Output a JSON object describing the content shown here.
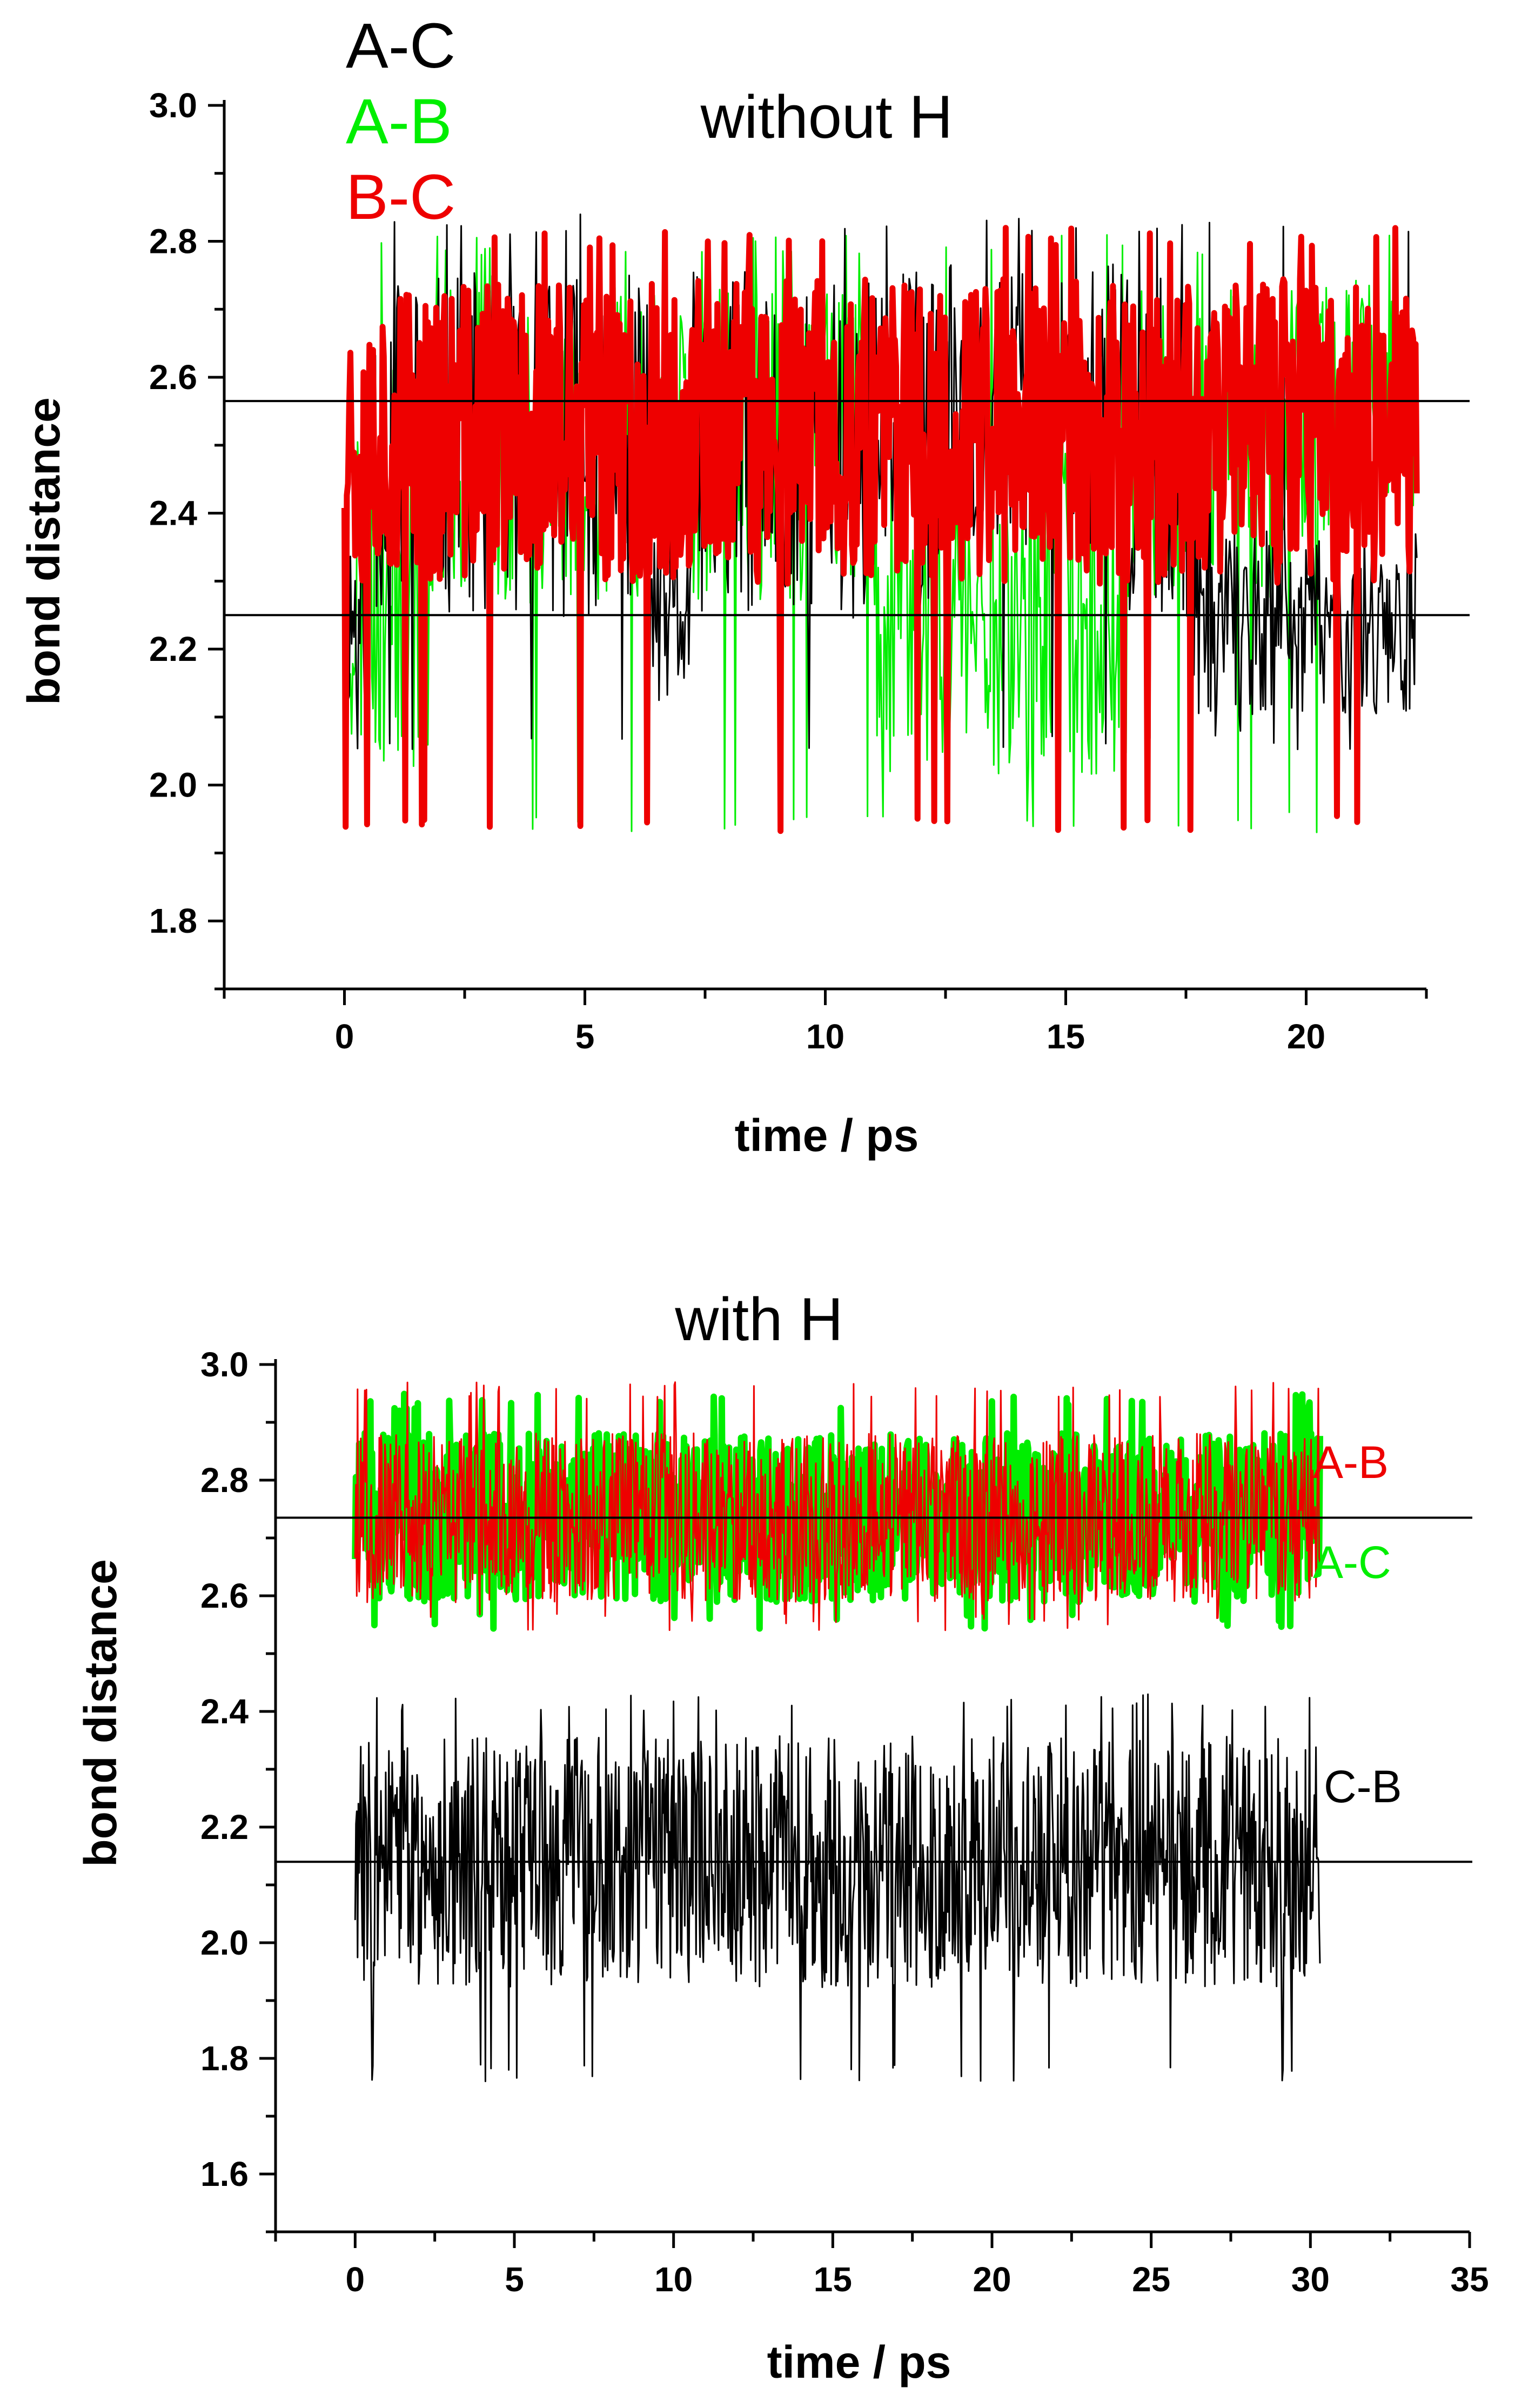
{
  "chart_data": [
    {
      "type": "line",
      "title": "without H",
      "xlabel": "time / ps",
      "ylabel": "bond distance",
      "xlim": [
        -2.5,
        22.5
      ],
      "ylim": [
        1.7,
        3.0
      ],
      "xticks": [
        0,
        5,
        10,
        15,
        20
      ],
      "yticks": [
        1.8,
        2.0,
        2.2,
        2.4,
        2.6,
        2.8,
        3.0
      ],
      "xtick_labels": [
        "0",
        "5",
        "10",
        "15",
        "20"
      ],
      "ytick_labels": [
        "1.8",
        "2.0",
        "2.2",
        "2.4",
        "2.6",
        "2.8",
        "3.0"
      ],
      "reference_lines": [
        2.565,
        2.25
      ],
      "legend": [
        "A-C",
        "A-B",
        "B-C"
      ],
      "series": [
        {
          "name": "A-C",
          "color": "#000000",
          "x_range": [
            0,
            22.3
          ],
          "mean": 2.5,
          "range": [
            2.05,
            2.84
          ],
          "seed": 11,
          "segments": [
            [
              0,
              0.5,
              2.25
            ],
            [
              6.3,
              7.2,
              2.25
            ],
            [
              12.5,
              16.3,
              2.56
            ],
            [
              17.5,
              22.3,
              2.24
            ]
          ]
        },
        {
          "name": "A-B",
          "color": "#00ee00",
          "x_range": [
            0,
            22.3
          ],
          "mean": 2.5,
          "range": [
            1.93,
            2.81
          ],
          "seed": 23,
          "segments": [
            [
              0,
              1.8,
              2.32
            ],
            [
              11.0,
              16.3,
              2.26
            ],
            [
              19.5,
              22.3,
              2.55
            ]
          ]
        },
        {
          "name": "B-C",
          "color": "#ee0000",
          "x_range": [
            0,
            22.3
          ],
          "mean": 2.52,
          "range": [
            1.93,
            2.82
          ],
          "seed": 37,
          "segments": [
            [
              0,
              22.3,
              2.52
            ]
          ]
        }
      ]
    },
    {
      "type": "line",
      "title": "with H",
      "xlabel": "time / ps",
      "ylabel": "bond distance",
      "xlim": [
        -2.5,
        35
      ],
      "ylim": [
        1.5,
        3.0
      ],
      "xticks": [
        0,
        5,
        10,
        15,
        20,
        25,
        30,
        35
      ],
      "yticks": [
        1.6,
        1.8,
        2.0,
        2.2,
        2.4,
        2.6,
        2.8,
        3.0
      ],
      "xtick_labels": [
        "0",
        "5",
        "10",
        "15",
        "20",
        "25",
        "30",
        "35"
      ],
      "ytick_labels": [
        "1.6",
        "1.8",
        "2.0",
        "2.2",
        "2.4",
        "2.6",
        "2.8",
        "3.0"
      ],
      "reference_lines": [
        2.735,
        2.14
      ],
      "series": [
        {
          "name": "A-C",
          "color": "#00ee00",
          "x_range": [
            0,
            30.3
          ],
          "mean": 2.735,
          "range": [
            2.54,
            2.95
          ],
          "seed": 51,
          "label": "A-C"
        },
        {
          "name": "A-B",
          "color": "#ee0000",
          "x_range": [
            0,
            30.3
          ],
          "mean": 2.735,
          "range": [
            2.54,
            2.97
          ],
          "seed": 67,
          "label": "A-B"
        },
        {
          "name": "C-B",
          "color": "#000000",
          "x_range": [
            0,
            30.3
          ],
          "mean": 2.14,
          "range": [
            1.76,
            2.43
          ],
          "seed": 83,
          "label": "C-B"
        }
      ]
    }
  ]
}
